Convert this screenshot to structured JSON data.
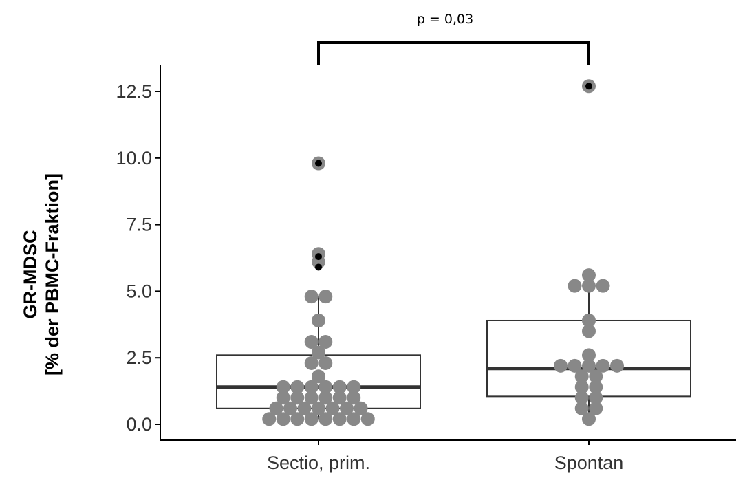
{
  "chart_data": {
    "type": "box",
    "ylabel": [
      "GR-MDSC",
      "[% der PBMC-Fraktion]"
    ],
    "xlabel": "",
    "ylim": [
      -0.6,
      13.5
    ],
    "yticks": [
      0.0,
      2.5,
      5.0,
      7.5,
      10.0,
      12.5
    ],
    "ytick_labels": [
      "0.0",
      "2.5",
      "5.0",
      "7.5",
      "10.0",
      "12.5"
    ],
    "grid": false,
    "categories": [
      "Sectio, prim.",
      "Spontan"
    ],
    "boxes": [
      {
        "category": "Sectio, prim.",
        "q1": 0.6,
        "median": 1.4,
        "q3": 2.6,
        "whisker_low": 0.2,
        "whisker_high": 4.8,
        "outliers": [
          5.9,
          6.3,
          9.8
        ]
      },
      {
        "category": "Spontan",
        "q1": 1.05,
        "median": 2.1,
        "q3": 3.9,
        "whisker_low": 0.2,
        "whisker_high": 5.6,
        "outliers": [
          12.7
        ]
      }
    ],
    "points": [
      {
        "category": "Sectio, prim.",
        "values": [
          0.2,
          0.2,
          0.2,
          0.2,
          0.2,
          0.2,
          0.2,
          0.2,
          0.6,
          0.6,
          0.6,
          0.6,
          0.6,
          0.6,
          0.6,
          1.0,
          1.0,
          1.0,
          1.0,
          1.0,
          1.0,
          1.4,
          1.4,
          1.4,
          1.4,
          1.4,
          1.4,
          1.8,
          2.3,
          2.3,
          2.7,
          3.1,
          3.1,
          3.9,
          4.8,
          4.8,
          6.1,
          6.4,
          9.8
        ]
      },
      {
        "category": "Spontan",
        "values": [
          0.2,
          0.6,
          0.6,
          1.0,
          1.0,
          1.4,
          1.4,
          1.8,
          1.8,
          2.2,
          2.2,
          2.2,
          2.2,
          2.2,
          2.6,
          3.5,
          3.9,
          5.2,
          5.2,
          5.2,
          5.6,
          12.7
        ]
      }
    ],
    "annotation": {
      "text": "p = 0,03",
      "from": "Sectio, prim.",
      "to": "Spontan"
    },
    "colors": {
      "box_line": "#333333",
      "median": "#333333",
      "point": "#888888",
      "outlier": "#000000",
      "axis": "#000000"
    }
  }
}
